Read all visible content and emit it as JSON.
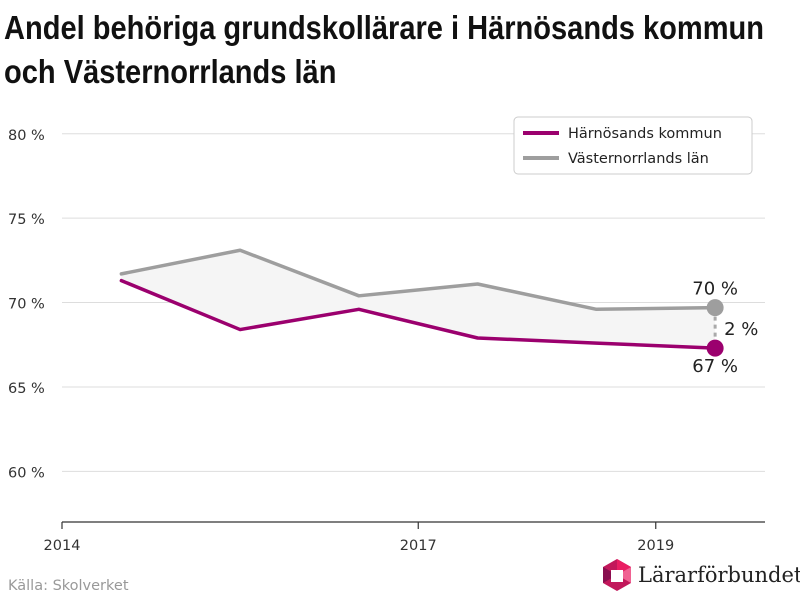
{
  "title_line1": "Andel behöriga grundskollärare i Härnösands kommun",
  "title_line2": "och Västernorrlands län",
  "source": "Källa: Skolverket",
  "brand": {
    "name": "Lärarförbundet"
  },
  "colors": {
    "harnosand": "#9b006e",
    "vasternorrland": "#9e9e9e",
    "grid": "#dddddd",
    "band": "#f5f5f5"
  },
  "chart_data": {
    "type": "line",
    "title": "Andel behöriga grundskollärare i Härnösands kommun och Västernorrlands län",
    "x_ticks": [
      2014,
      2017,
      2019
    ],
    "y_ticks": [
      "60 %",
      "65 %",
      "70 %",
      "75 %",
      "80 %"
    ],
    "ylim": [
      57,
      82
    ],
    "grid": "horizontal",
    "legend_position": "top-right",
    "series": [
      {
        "name": "Härnösands kommun",
        "color": "#9b006e",
        "x": [
          2014.5,
          2015.5,
          2016.5,
          2017.5,
          2018.5,
          2019.5
        ],
        "values": [
          71.3,
          68.4,
          69.6,
          67.9,
          67.6,
          67.3
        ]
      },
      {
        "name": "Västernorrlands län",
        "color": "#9e9e9e",
        "x": [
          2014.5,
          2015.5,
          2016.5,
          2017.5,
          2018.5,
          2019.5
        ],
        "values": [
          71.7,
          73.1,
          70.4,
          71.1,
          69.6,
          69.7
        ]
      }
    ],
    "annotations": {
      "vasternorrland_end": "70 %",
      "harnosand_end": "67 %",
      "difference": "2 %"
    }
  }
}
